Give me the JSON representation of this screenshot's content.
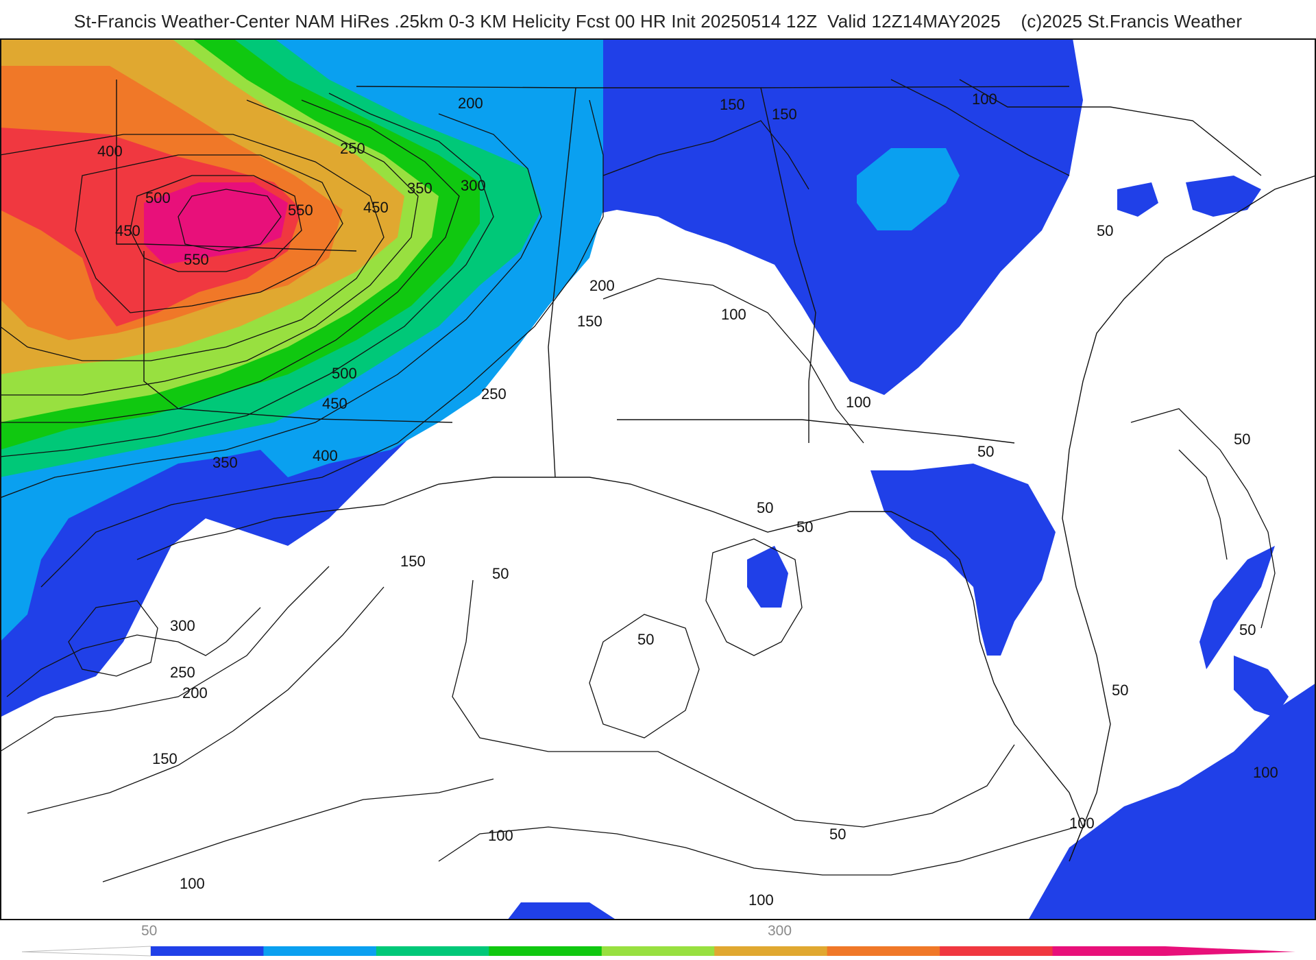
{
  "title": "St-Francis Weather-Center NAM HiRes .25km 0-3 KM Helicity Fcst 00 HR Init 20250514 12Z  Valid 12Z14MAY2025    (c)2025 St.Francis Weather",
  "colorbar": {
    "tick_labels": [
      "50",
      "300"
    ],
    "colors": [
      "#2040e8",
      "#0aa0f0",
      "#00c878",
      "#10c810",
      "#98e040",
      "#e0a830",
      "#f07828",
      "#f03840",
      "#e8107a"
    ]
  },
  "contour_labels": [
    "400",
    "500",
    "550",
    "450",
    "550",
    "250",
    "350",
    "300",
    "450",
    "200",
    "150",
    "150",
    "100",
    "200",
    "150",
    "100",
    "500",
    "450",
    "400",
    "350",
    "250",
    "100",
    "50",
    "50",
    "300",
    "250",
    "200",
    "150",
    "150",
    "50",
    "50",
    "50",
    "50",
    "50",
    "50",
    "50",
    "100",
    "100",
    "100",
    "100",
    "100",
    "50"
  ]
}
